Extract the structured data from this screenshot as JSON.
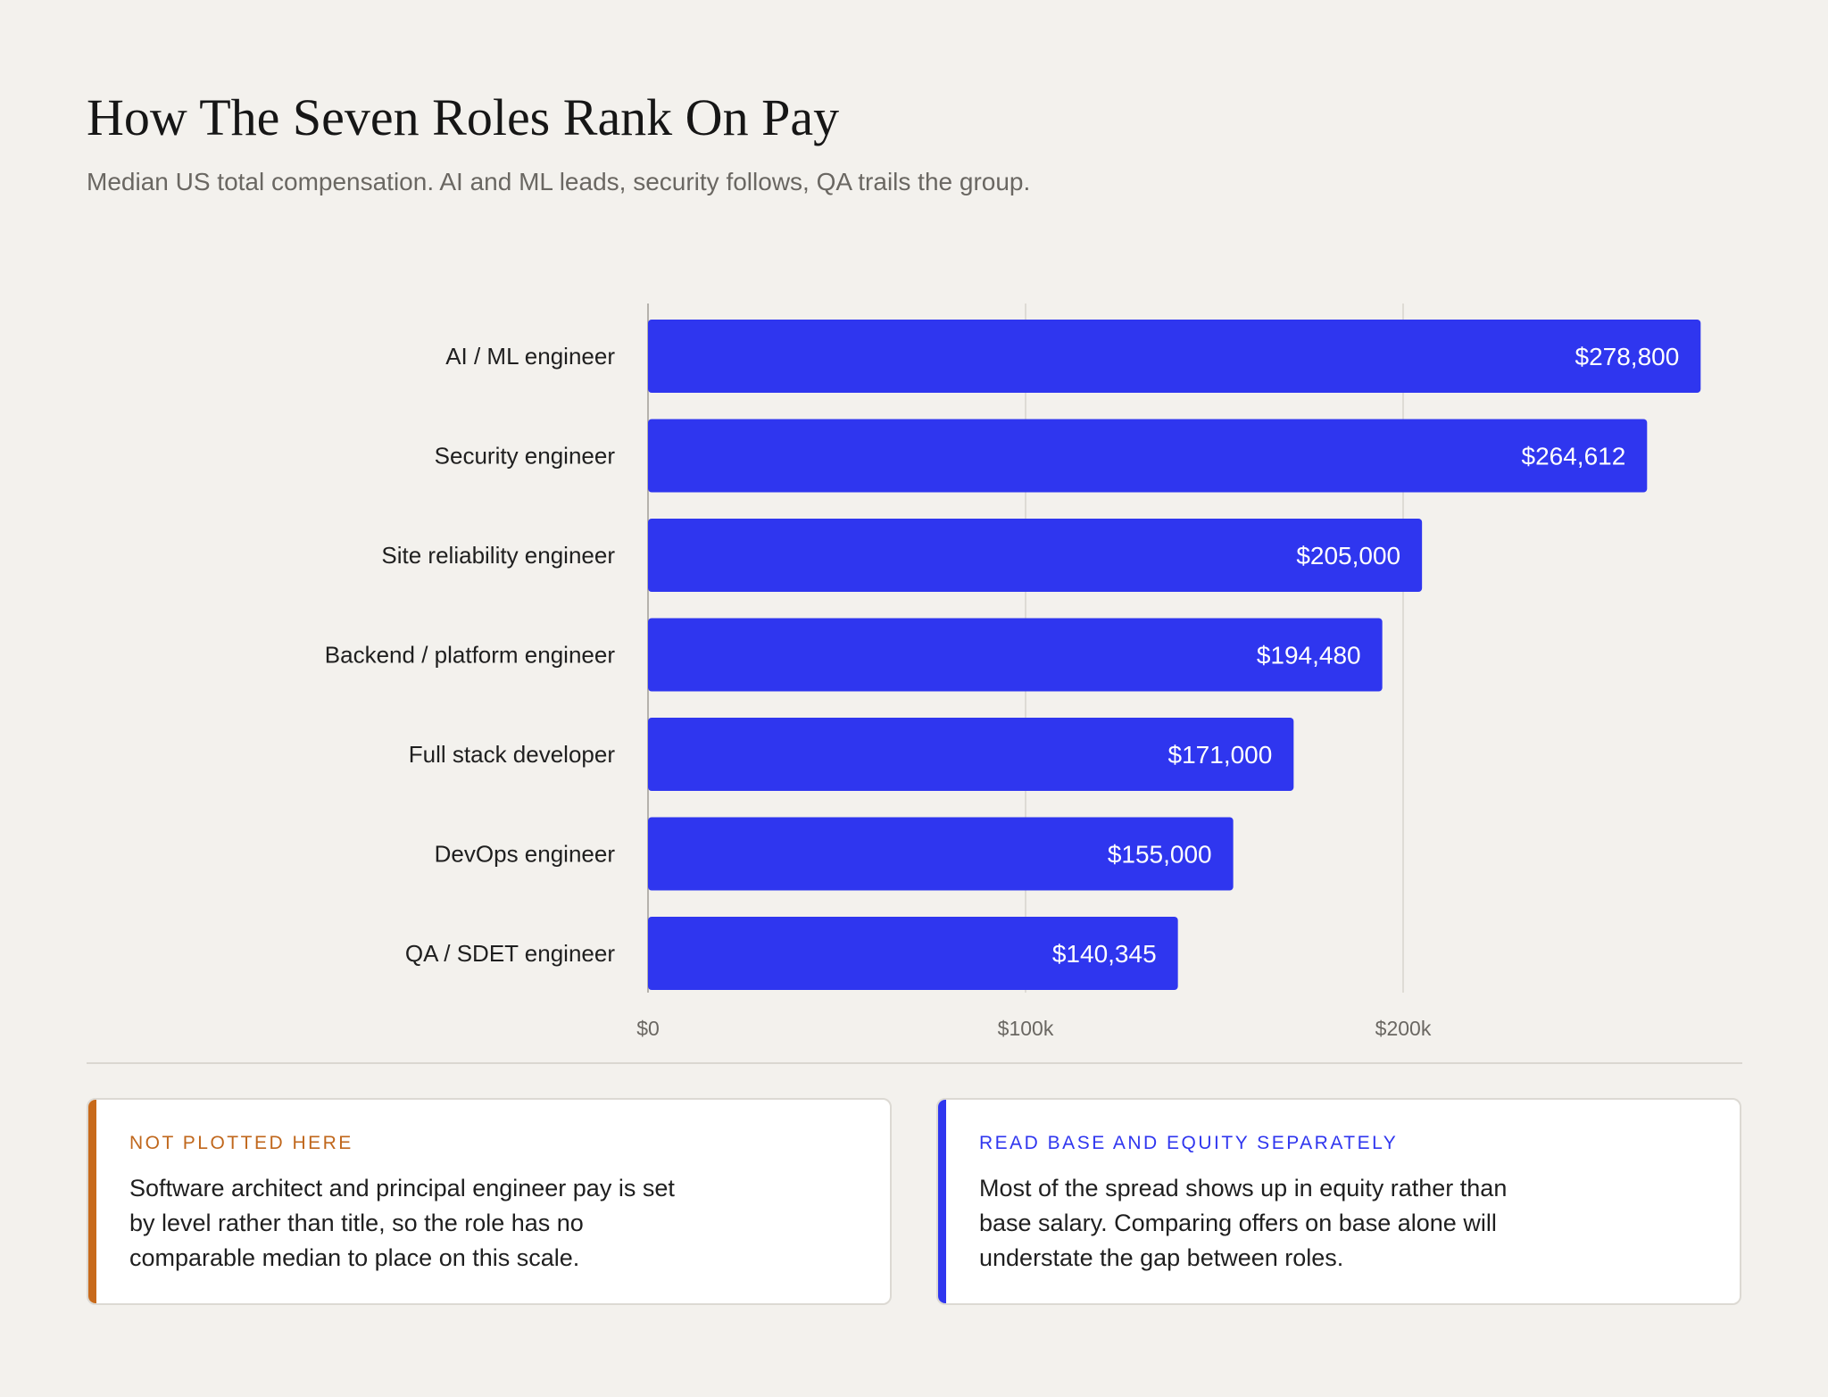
{
  "header": {
    "title": "How The Seven Roles Rank On Pay",
    "subtitle": "Median US total compensation. AI and ML leads, security follows, QA trails the group."
  },
  "chart_data": {
    "type": "bar",
    "orientation": "horizontal",
    "categories": [
      "AI / ML engineer",
      "Security engineer",
      "Site reliability engineer",
      "Backend / platform engineer",
      "Full stack developer",
      "DevOps engineer",
      "QA / SDET engineer"
    ],
    "values": [
      278800,
      264612,
      205000,
      194480,
      171000,
      155000,
      140345
    ],
    "value_labels": [
      "$278,800",
      "$264,612",
      "$205,000",
      "$194,480",
      "$171,000",
      "$155,000",
      "$140,345"
    ],
    "x_ticks": [
      0,
      100000,
      200000
    ],
    "x_tick_labels": [
      "$0",
      "$100k",
      "$200k"
    ],
    "xlim": [
      0,
      290000
    ],
    "grid": "vertical",
    "bar_color": "#2f36ef",
    "legend": "none"
  },
  "notes": [
    {
      "kicker": "Not plotted here",
      "body": "Software architect and principal engineer pay is set by level rather than title, so the role has no comparable median to place on this scale.",
      "accent": "#c86a1b"
    },
    {
      "kicker": "Read base and equity separately",
      "body": "Most of the spread shows up in equity rather than base salary. Comparing offers on base alone will understate the gap between roles.",
      "accent": "#2f36ef"
    }
  ]
}
